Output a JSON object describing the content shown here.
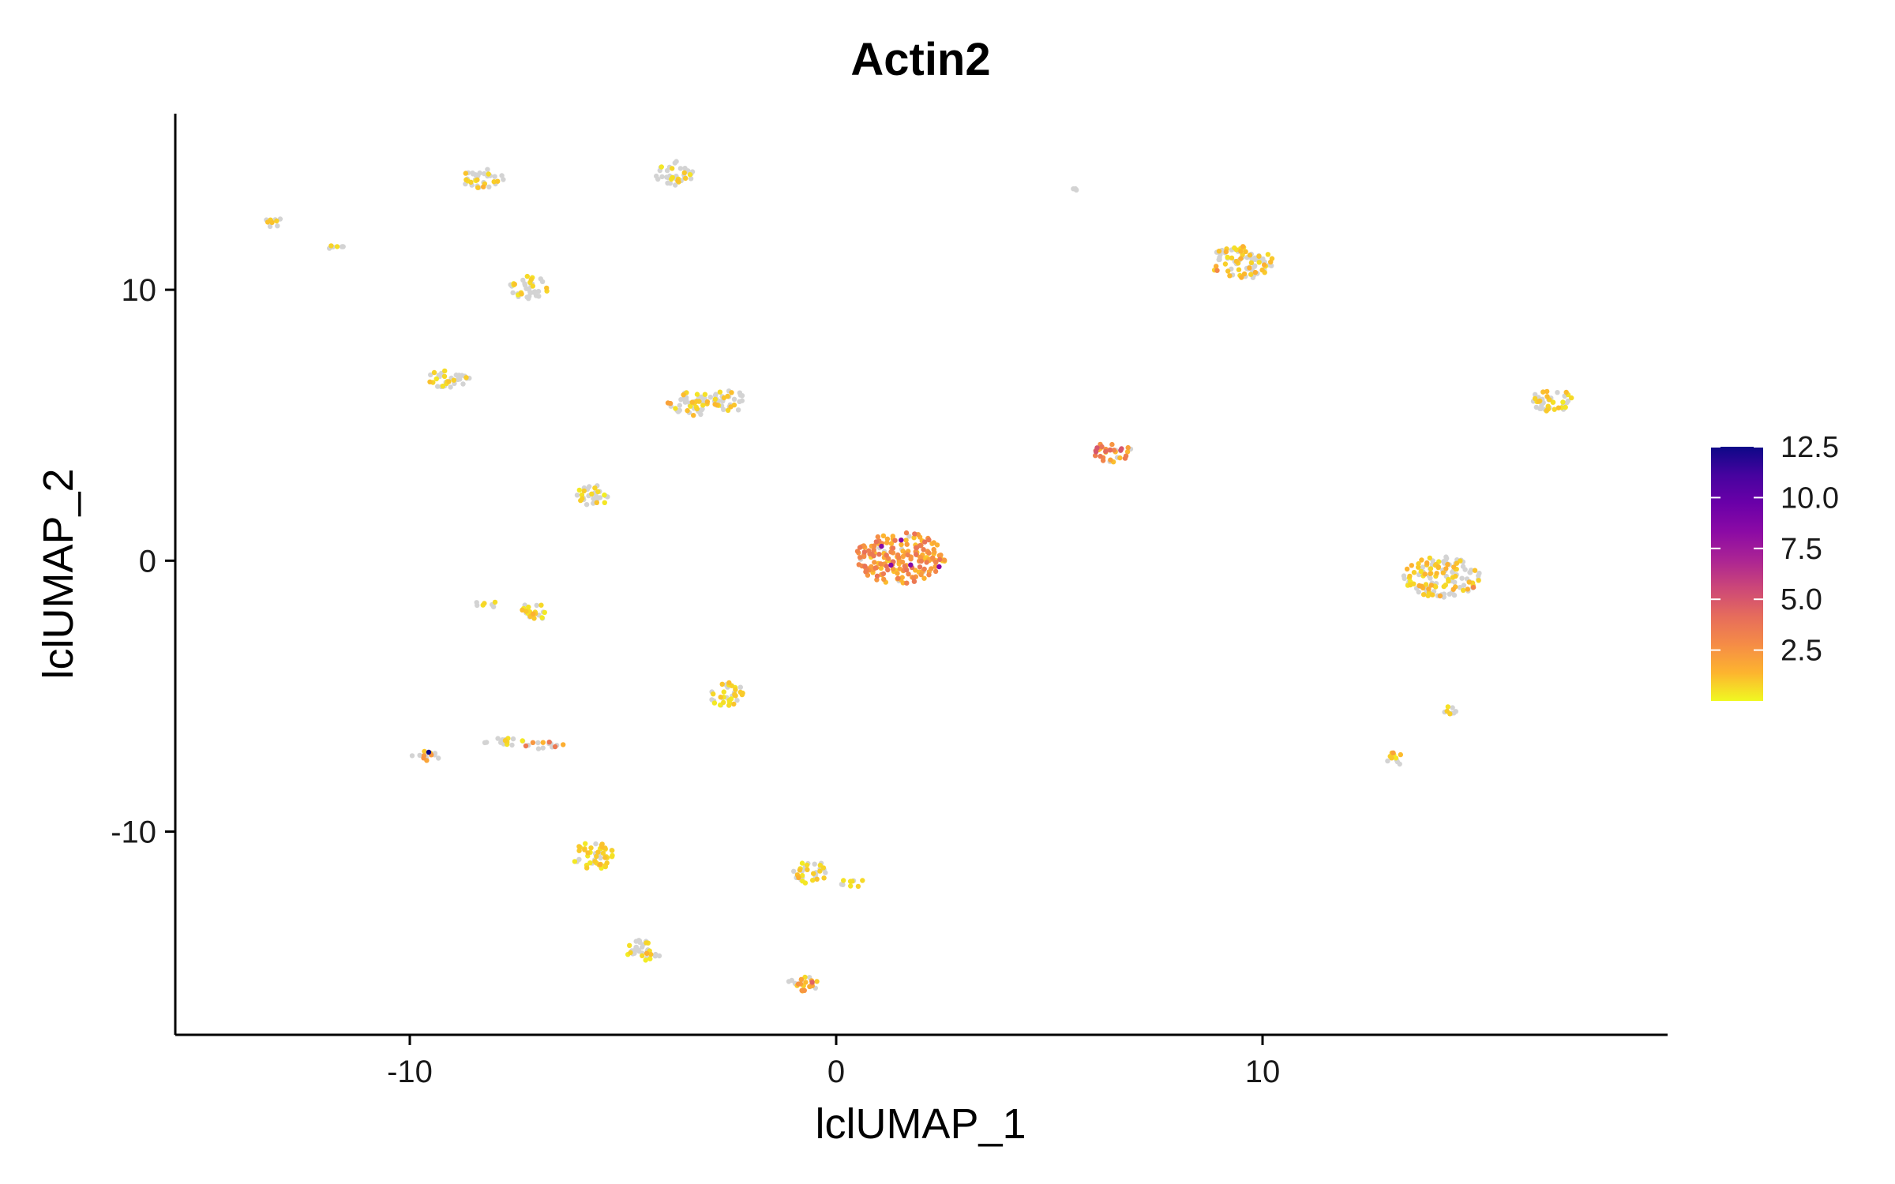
{
  "chart_data": {
    "type": "scatter",
    "title": "Actin2",
    "xlabel": "lclUMAP_1",
    "ylabel": "lclUMAP_2",
    "xlim": [
      -15.5,
      19.5
    ],
    "ylim": [
      -17.5,
      16.5
    ],
    "x_ticks": [
      -10,
      0,
      10
    ],
    "x_tick_labels": [
      "-10",
      "0",
      "10"
    ],
    "y_ticks": [
      -10,
      0,
      10
    ],
    "y_tick_labels": [
      "-10",
      "0",
      "10"
    ],
    "grid": false,
    "legend_position": "right",
    "color_scale": {
      "min": 0,
      "max": 12.5,
      "ticks": [
        2.5,
        5.0,
        7.5,
        10.0,
        12.5
      ],
      "tick_labels": [
        "2.5",
        "5.0",
        "7.5",
        "10.0",
        "12.5"
      ],
      "colors": [
        "#f0f921",
        "#fdb42f",
        "#f58c46",
        "#e66c5c",
        "#cc4778",
        "#ab2494",
        "#8b0aa5",
        "#6a00a8",
        "#46039f",
        "#0d0887"
      ]
    },
    "zero_color": "#d3d3d3",
    "clusters": [
      {
        "x": 1.5,
        "y": 0.1,
        "rx": 1.05,
        "ry": 0.95,
        "expressed_fraction": 0.95,
        "mean_expression": 2.4,
        "max_expression": 8.5
      },
      {
        "x": 14.2,
        "y": -0.6,
        "rx": 0.9,
        "ry": 0.75,
        "expressed_fraction": 0.55,
        "mean_expression": 1.0,
        "max_expression": 3.0
      },
      {
        "x": 9.5,
        "y": 11.0,
        "rx": 0.75,
        "ry": 0.6,
        "expressed_fraction": 0.45,
        "mean_expression": 1.0,
        "max_expression": 3.0
      },
      {
        "x": 16.8,
        "y": 5.9,
        "rx": 0.55,
        "ry": 0.4,
        "expressed_fraction": 0.45,
        "mean_expression": 0.8,
        "max_expression": 1.8
      },
      {
        "x": 6.5,
        "y": 4.0,
        "rx": 0.45,
        "ry": 0.4,
        "expressed_fraction": 0.85,
        "mean_expression": 2.6,
        "max_expression": 5.0
      },
      {
        "x": -3.8,
        "y": 14.3,
        "rx": 0.45,
        "ry": 0.45,
        "expressed_fraction": 0.35,
        "mean_expression": 0.7,
        "max_expression": 1.5
      },
      {
        "x": -8.3,
        "y": 14.1,
        "rx": 0.5,
        "ry": 0.35,
        "expressed_fraction": 0.3,
        "mean_expression": 0.7,
        "max_expression": 1.5
      },
      {
        "x": -13.2,
        "y": 12.5,
        "rx": 0.25,
        "ry": 0.2,
        "expressed_fraction": 0.5,
        "mean_expression": 0.7,
        "max_expression": 1.5
      },
      {
        "x": -11.7,
        "y": 11.6,
        "rx": 0.3,
        "ry": 0.12,
        "expressed_fraction": 0.3,
        "mean_expression": 0.6,
        "max_expression": 1.2
      },
      {
        "x": -7.2,
        "y": 10.1,
        "rx": 0.45,
        "ry": 0.45,
        "expressed_fraction": 0.35,
        "mean_expression": 0.7,
        "max_expression": 1.5
      },
      {
        "x": -9.1,
        "y": 6.7,
        "rx": 0.5,
        "ry": 0.35,
        "expressed_fraction": 0.4,
        "mean_expression": 0.7,
        "max_expression": 1.5
      },
      {
        "x": -3.4,
        "y": 5.8,
        "rx": 0.6,
        "ry": 0.45,
        "expressed_fraction": 0.35,
        "mean_expression": 0.8,
        "max_expression": 2.0
      },
      {
        "x": -2.5,
        "y": 5.9,
        "rx": 0.45,
        "ry": 0.4,
        "expressed_fraction": 0.25,
        "mean_expression": 0.8,
        "max_expression": 2.5
      },
      {
        "x": -5.7,
        "y": 2.4,
        "rx": 0.4,
        "ry": 0.4,
        "expressed_fraction": 0.3,
        "mean_expression": 0.7,
        "max_expression": 1.5
      },
      {
        "x": -8.2,
        "y": -1.6,
        "rx": 0.3,
        "ry": 0.12,
        "expressed_fraction": 0.4,
        "mean_expression": 0.6,
        "max_expression": 1.2
      },
      {
        "x": -7.1,
        "y": -1.9,
        "rx": 0.32,
        "ry": 0.35,
        "expressed_fraction": 0.55,
        "mean_expression": 0.7,
        "max_expression": 1.5
      },
      {
        "x": -2.6,
        "y": -4.9,
        "rx": 0.42,
        "ry": 0.45,
        "expressed_fraction": 0.7,
        "mean_expression": 0.7,
        "max_expression": 1.5
      },
      {
        "x": -9.6,
        "y": -7.2,
        "rx": 0.4,
        "ry": 0.18,
        "expressed_fraction": 0.45,
        "mean_expression": 1.5,
        "max_expression": 12.5
      },
      {
        "x": -7.8,
        "y": -6.7,
        "rx": 0.5,
        "ry": 0.15,
        "expressed_fraction": 0.5,
        "mean_expression": 0.7,
        "max_expression": 1.5
      },
      {
        "x": -6.9,
        "y": -6.8,
        "rx": 0.5,
        "ry": 0.15,
        "expressed_fraction": 0.5,
        "mean_expression": 2.5,
        "max_expression": 10.0
      },
      {
        "x": -5.7,
        "y": -10.9,
        "rx": 0.5,
        "ry": 0.5,
        "expressed_fraction": 0.7,
        "mean_expression": 0.7,
        "max_expression": 1.5
      },
      {
        "x": -4.5,
        "y": -14.4,
        "rx": 0.42,
        "ry": 0.42,
        "expressed_fraction": 0.35,
        "mean_expression": 0.7,
        "max_expression": 1.5
      },
      {
        "x": -0.6,
        "y": -11.5,
        "rx": 0.4,
        "ry": 0.45,
        "expressed_fraction": 0.45,
        "mean_expression": 0.7,
        "max_expression": 1.5
      },
      {
        "x": 0.4,
        "y": -11.9,
        "rx": 0.3,
        "ry": 0.15,
        "expressed_fraction": 0.3,
        "mean_expression": 0.6,
        "max_expression": 1.2
      },
      {
        "x": -0.8,
        "y": -15.6,
        "rx": 0.4,
        "ry": 0.3,
        "expressed_fraction": 0.65,
        "mean_expression": 1.6,
        "max_expression": 4.5
      },
      {
        "x": 13.1,
        "y": -7.3,
        "rx": 0.22,
        "ry": 0.25,
        "expressed_fraction": 0.7,
        "mean_expression": 0.9,
        "max_expression": 2.0
      },
      {
        "x": 14.4,
        "y": -5.5,
        "rx": 0.22,
        "ry": 0.18,
        "expressed_fraction": 0.5,
        "mean_expression": 0.8,
        "max_expression": 1.5
      },
      {
        "x": 5.6,
        "y": 13.7,
        "rx": 0.05,
        "ry": 0.05,
        "expressed_fraction": 0.0,
        "mean_expression": 0.0,
        "max_expression": 0.0
      }
    ]
  }
}
